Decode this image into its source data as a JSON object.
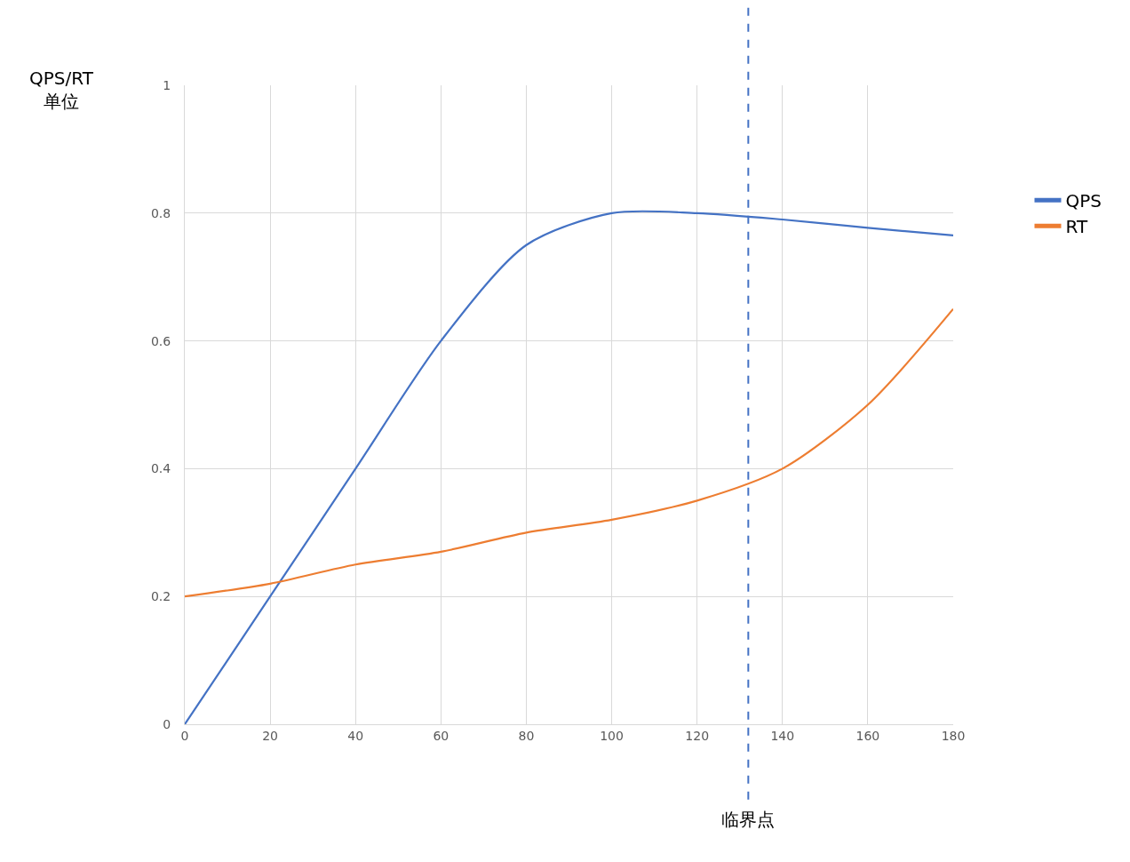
{
  "chart_data": {
    "type": "line",
    "ylabel": "QPS/RT\n单位",
    "x": [
      0,
      20,
      40,
      60,
      80,
      100,
      120,
      140,
      160,
      180
    ],
    "series": [
      {
        "name": "QPS",
        "color": "#4472c4",
        "values": [
          0,
          0.2,
          0.4,
          0.6,
          0.75,
          0.8,
          0.8,
          0.79,
          0.777,
          0.765
        ]
      },
      {
        "name": "RT",
        "color": "#ed7d31",
        "values": [
          0.2,
          0.22,
          0.25,
          0.27,
          0.3,
          0.32,
          0.35,
          0.4,
          0.5,
          0.65
        ]
      }
    ],
    "xlim": [
      0,
      180
    ],
    "xticks": [
      0,
      20,
      40,
      60,
      80,
      100,
      120,
      140,
      160,
      180
    ],
    "ylim": [
      0,
      1
    ],
    "yticks": [
      0,
      0.2,
      0.4,
      0.6,
      0.8,
      1
    ],
    "ref_lines": [
      {
        "axis": "x",
        "value": 132,
        "label": "临界点",
        "color": "#4472c4",
        "line_style": "dashed"
      }
    ],
    "grid": true,
    "legend": "right",
    "marker": "none",
    "line_style": "solid"
  }
}
